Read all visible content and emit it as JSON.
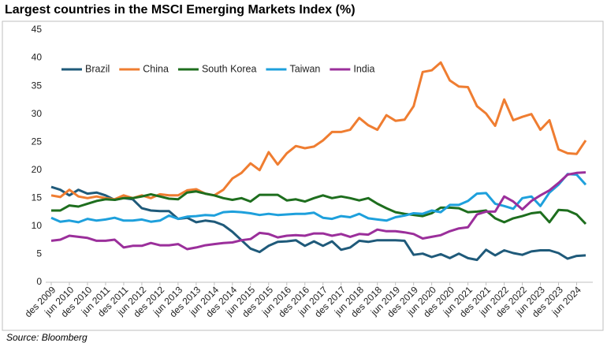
{
  "chart_data": {
    "type": "line",
    "title": "Largest countries in the MSCI Emerging Markets Index (%)",
    "source": "Source: Bloomberg",
    "categories": [
      "des 2009",
      null,
      "jun 2010",
      null,
      "des 2010",
      null,
      "jun 2011",
      null,
      "des 2011",
      null,
      "jun 2012",
      null,
      "des 2012",
      null,
      "jun 2013",
      null,
      "des 2013",
      null,
      "jun 2014",
      null,
      "des 2014",
      null,
      "jun 2015",
      null,
      "des 2015",
      null,
      "jun 2016",
      null,
      "des 2016",
      null,
      "jun 2017",
      null,
      "des 2017",
      null,
      "jun 2018",
      null,
      "des 2018",
      null,
      "jun 2019",
      null,
      "des 2019",
      null,
      "jun 2020",
      null,
      "des 2020",
      null,
      "jun 2021",
      null,
      "des 2021",
      null,
      "jun 2022",
      null,
      "des 2022",
      null,
      "jun 2023",
      null,
      "des 2023",
      null,
      "jun 2024",
      null
    ],
    "series": [
      {
        "name": "Brazil",
        "color": "#1f5a7a",
        "values": [
          17,
          16.5,
          15.5,
          16.5,
          15.8,
          16,
          15.5,
          14.7,
          15,
          14.8,
          13.2,
          12.8,
          12.7,
          12.7,
          11.3,
          11.5,
          10.7,
          11,
          10.8,
          10.2,
          9,
          7.5,
          6,
          5.4,
          6.5,
          7.2,
          7.3,
          7.5,
          6.5,
          7.3,
          6.5,
          7.3,
          5.8,
          6.2,
          7.4,
          7.2,
          7.5,
          7.5,
          7.5,
          7.4,
          4.9,
          5.1,
          4.5,
          5,
          4.3,
          5.1,
          4.3,
          4,
          5.8,
          4.8,
          5.7,
          5.2,
          4.9,
          5.5,
          5.7,
          5.7,
          5.2,
          4.2,
          4.7,
          4.8
        ]
      },
      {
        "name": "China",
        "color": "#ef7d31",
        "values": [
          15.5,
          15.2,
          16.5,
          15.3,
          15,
          15.3,
          15,
          14.8,
          15.5,
          15,
          15.5,
          15,
          15.7,
          15.5,
          15.5,
          16.4,
          16.6,
          15.8,
          15.5,
          16.5,
          18.5,
          19.5,
          21.2,
          20,
          23.2,
          21,
          23,
          24.3,
          23.9,
          24.2,
          25.3,
          26.8,
          26.8,
          27.2,
          29.3,
          28,
          27.2,
          29.8,
          28.8,
          29,
          31.4,
          37.5,
          37.8,
          39.2,
          36,
          34.9,
          34.8,
          31.4,
          30.1,
          27.9,
          32.6,
          28.9,
          29.5,
          30,
          27.2,
          28.9,
          23.7,
          23,
          22.9,
          25.3
        ]
      },
      {
        "name": "South Korea",
        "color": "#1e6e1e",
        "values": [
          12.8,
          12.8,
          13.7,
          13.5,
          14,
          14.5,
          14.8,
          14.7,
          15,
          15,
          15.3,
          15.7,
          15.3,
          14.9,
          14.8,
          16,
          16.2,
          15.8,
          15.5,
          15,
          14.7,
          15,
          14.4,
          15.6,
          15.6,
          15.6,
          14.6,
          14.8,
          14.4,
          15,
          15.5,
          15,
          15.3,
          15,
          14.6,
          15,
          14,
          13.2,
          12.5,
          12.2,
          12,
          11.8,
          12.3,
          13.3,
          13.3,
          13.2,
          12.5,
          12.6,
          12.8,
          11.4,
          10.7,
          11.4,
          11.8,
          12.3,
          12.5,
          10.7,
          12.9,
          12.8,
          12.1,
          10.4
        ]
      },
      {
        "name": "Taiwan",
        "color": "#1ea0dc",
        "values": [
          11.5,
          10.8,
          11,
          10.7,
          11.3,
          11,
          11.2,
          11.5,
          11,
          11,
          11.2,
          10.8,
          11,
          11.9,
          11.3,
          11.7,
          11.8,
          12,
          11.9,
          12.5,
          12.6,
          12.5,
          12.3,
          12,
          12.2,
          12,
          12.1,
          12.2,
          12.2,
          12.4,
          11.5,
          11.3,
          11.8,
          11.6,
          12.2,
          11.4,
          11.2,
          11,
          11.6,
          11.9,
          12.3,
          12.2,
          12.8,
          12.5,
          13.8,
          13.8,
          14.5,
          15.8,
          15.9,
          14,
          13.6,
          13.1,
          15,
          15.3,
          13.6,
          16,
          17.4,
          19.3,
          19.2,
          17.4
        ]
      },
      {
        "name": "India",
        "color": "#9b2f9b",
        "values": [
          7.4,
          7.6,
          8.3,
          8.1,
          7.9,
          7.4,
          7.4,
          7.6,
          6.2,
          6.5,
          6.5,
          7,
          6.6,
          6.6,
          6.8,
          5.9,
          6.2,
          6.6,
          6.8,
          7,
          7.1,
          7.5,
          7.7,
          8.8,
          8.6,
          8,
          8.3,
          8.4,
          8.3,
          8.7,
          8.7,
          8.3,
          8.6,
          8.1,
          8.6,
          8.5,
          9.4,
          9.1,
          9.1,
          8.9,
          8.6,
          7.8,
          8.1,
          8.4,
          9.1,
          9.6,
          9.8,
          12.1,
          12.6,
          12.6,
          15.3,
          14.4,
          13,
          14.5,
          15.5,
          16.4,
          17.7,
          19.2,
          19.5,
          19.6
        ]
      }
    ],
    "ylim": [
      0,
      45
    ],
    "yticks": [
      0,
      5,
      10,
      15,
      20,
      25,
      30,
      35,
      40,
      45
    ],
    "legend": "top-left"
  }
}
